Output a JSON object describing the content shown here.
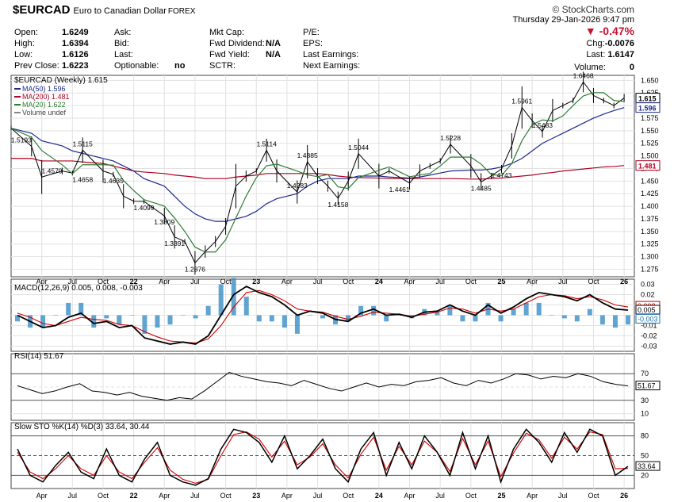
{
  "header": {
    "symbol": "$EURCAD",
    "description": "Euro to Canadian Dollar",
    "exchange": "FOREX",
    "logo": "© StockCharts.com",
    "datetime": "Thursday  29-Jan-2026  9:47 pm",
    "change_pct": "▼ -0.47%",
    "chg_label": "Chg:",
    "chg_value": "-0.0076",
    "last_label": "Last:",
    "last_value": "1.6147",
    "volume_label": "Volume:",
    "volume_value": "0"
  },
  "quote": {
    "col1": [
      {
        "label": "Open:",
        "value": "1.6249"
      },
      {
        "label": "High:",
        "value": "1.6394"
      },
      {
        "label": "Low:",
        "value": "1.6126"
      },
      {
        "label": "Prev Close:",
        "value": "1.6223"
      }
    ],
    "col2": [
      {
        "label": "Ask:",
        "value": ""
      },
      {
        "label": "Bid:",
        "value": ""
      },
      {
        "label": "Last:",
        "value": ""
      },
      {
        "label": "Optionable:",
        "value": "no"
      }
    ],
    "col3": [
      {
        "label": "Mkt Cap:",
        "value": ""
      },
      {
        "label": "Fwd Dividend:",
        "value": "N/A"
      },
      {
        "label": "Fwd Yield:",
        "value": "N/A"
      },
      {
        "label": "SCTR:",
        "value": ""
      }
    ],
    "col4": [
      {
        "label": "P/E:"
      },
      {
        "label": "EPS:"
      },
      {
        "label": "Last Earnings:"
      },
      {
        "label": "Next Earnings:"
      }
    ]
  },
  "chart_data": [
    {
      "type": "line",
      "title": "$EURCAD (Weekly) 1.615",
      "legend": [
        {
          "name": "MA(50) 1.596",
          "color": "#1c2a8c"
        },
        {
          "name": "MA(200) 1.481",
          "color": "#b00020"
        },
        {
          "name": "MA(20) 1.622",
          "color": "#2e7d32"
        },
        {
          "name": "Volume undef",
          "color": "#888888"
        }
      ],
      "x_ticks": [
        "Apr",
        "Jul",
        "Oct",
        "22",
        "Apr",
        "Jul",
        "Oct",
        "23",
        "Apr",
        "Jul",
        "Oct",
        "24",
        "Apr",
        "Jul",
        "Oct",
        "25",
        "Apr",
        "Jul",
        "Oct",
        "26"
      ],
      "x_start": "2021-01",
      "ylim": [
        1.26,
        1.66
      ],
      "y_ticks": [
        "1.650",
        "1.625",
        "1.600",
        "1.575",
        "1.550",
        "1.525",
        "1.500",
        "1.475",
        "1.450",
        "1.425",
        "1.400",
        "1.375",
        "1.350",
        "1.325",
        "1.300",
        "1.275"
      ],
      "price_months": [
        "2021-01",
        "2021-03",
        "2021-04",
        "2021-06",
        "2021-07",
        "2021-08",
        "2021-10",
        "2021-11",
        "2021-12",
        "2022-01",
        "2022-02",
        "2022-04",
        "2022-05",
        "2022-06",
        "2022-07",
        "2022-08",
        "2022-09",
        "2022-10",
        "2022-11",
        "2022-12",
        "2023-01",
        "2023-02",
        "2023-03",
        "2023-05",
        "2023-06",
        "2023-07",
        "2023-08",
        "2023-09",
        "2023-10",
        "2023-11",
        "2024-01",
        "2024-02",
        "2024-04",
        "2024-05",
        "2024-06",
        "2024-07",
        "2024-08",
        "2024-10",
        "2024-11",
        "2024-12",
        "2025-01",
        "2025-02",
        "2025-03",
        "2025-04",
        "2025-05",
        "2025-06",
        "2025-07",
        "2025-08",
        "2025-09",
        "2025-10",
        "2025-11",
        "2025-12",
        "2026-01"
      ],
      "price": [
        1.555,
        1.519,
        1.458,
        1.47,
        1.466,
        1.5115,
        1.47,
        1.4635,
        1.42,
        1.41,
        1.4099,
        1.3809,
        1.3391,
        1.33,
        1.2876,
        1.31,
        1.33,
        1.36,
        1.44,
        1.46,
        1.47,
        1.5114,
        1.47,
        1.4283,
        1.4885,
        1.46,
        1.44,
        1.4158,
        1.45,
        1.5044,
        1.46,
        1.47,
        1.4461,
        1.47,
        1.48,
        1.49,
        1.5228,
        1.48,
        1.4485,
        1.46,
        1.4743,
        1.52,
        1.5961,
        1.57,
        1.5483,
        1.59,
        1.6,
        1.61,
        1.6468,
        1.62,
        1.61,
        1.6,
        1.615
      ],
      "ma200": [
        1.495,
        1.495,
        1.49,
        1.49,
        1.49,
        1.488,
        1.485,
        1.48,
        1.475,
        1.47,
        1.468,
        1.465,
        1.462,
        1.46,
        1.458,
        1.455,
        1.455,
        1.455,
        1.458,
        1.46,
        1.462,
        1.465,
        1.465,
        1.465,
        1.465,
        1.465,
        1.463,
        1.46,
        1.458,
        1.457,
        1.456,
        1.455,
        1.455,
        1.455,
        1.455,
        1.455,
        1.455,
        1.454,
        1.454,
        1.455,
        1.456,
        1.458,
        1.46,
        1.462,
        1.465,
        1.467,
        1.47,
        1.472,
        1.474,
        1.476,
        1.478,
        1.479,
        1.481
      ],
      "ma50": [
        1.555,
        1.545,
        1.53,
        1.52,
        1.51,
        1.505,
        1.495,
        1.49,
        1.48,
        1.47,
        1.455,
        1.44,
        1.42,
        1.4,
        1.385,
        1.375,
        1.37,
        1.37,
        1.375,
        1.38,
        1.39,
        1.405,
        1.415,
        1.425,
        1.44,
        1.45,
        1.455,
        1.455,
        1.455,
        1.46,
        1.46,
        1.458,
        1.456,
        1.458,
        1.462,
        1.466,
        1.47,
        1.472,
        1.472,
        1.474,
        1.478,
        1.485,
        1.495,
        1.51,
        1.525,
        1.535,
        1.545,
        1.555,
        1.565,
        1.575,
        1.583,
        1.59,
        1.596
      ],
      "annotations": [
        {
          "x": "2021-02",
          "y": 1.5193,
          "label": "1.5193"
        },
        {
          "x": "2021-05",
          "y": 1.4579,
          "label": "1.4579"
        },
        {
          "x": "2021-08",
          "y": 1.5115,
          "label": "1.5115"
        },
        {
          "x": "2021-08",
          "y": 1.4658,
          "label": "1.4658"
        },
        {
          "x": "2021-11",
          "y": 1.4635,
          "label": "1.4635"
        },
        {
          "x": "2022-02",
          "y": 1.4099,
          "label": "1.4099"
        },
        {
          "x": "2022-04",
          "y": 1.3809,
          "label": "1.3809"
        },
        {
          "x": "2022-05",
          "y": 1.3391,
          "label": "1.3391"
        },
        {
          "x": "2022-07",
          "y": 1.2876,
          "label": "1.2876"
        },
        {
          "x": "2023-02",
          "y": 1.5114,
          "label": "1.5114"
        },
        {
          "x": "2023-05",
          "y": 1.4283,
          "label": "1.4283"
        },
        {
          "x": "2023-06",
          "y": 1.4885,
          "label": "1.4885"
        },
        {
          "x": "2023-09",
          "y": 1.4158,
          "label": "1.4158"
        },
        {
          "x": "2023-11",
          "y": 1.5044,
          "label": "1.5044"
        },
        {
          "x": "2024-03",
          "y": 1.4461,
          "label": "1.4461"
        },
        {
          "x": "2024-08",
          "y": 1.5228,
          "label": "1.5228"
        },
        {
          "x": "2024-11",
          "y": 1.4485,
          "label": "1.4485"
        },
        {
          "x": "2025-01",
          "y": 1.4743,
          "label": "1.4743"
        },
        {
          "x": "2025-03",
          "y": 1.5961,
          "label": "1.5961"
        },
        {
          "x": "2025-05",
          "y": 1.5483,
          "label": "1.5483"
        },
        {
          "x": "2025-09",
          "y": 1.6468,
          "label": "1.6468"
        }
      ],
      "right_labels": [
        {
          "y": 1.615,
          "label": "1.615",
          "color": "#000000"
        },
        {
          "y": 1.596,
          "label": "1.596",
          "color": "#1c2a8c"
        },
        {
          "y": 1.481,
          "label": "1.481",
          "color": "#b00020"
        }
      ]
    },
    {
      "type": "line",
      "title": "MACD(12,26,9) 0.005, 0.008, -0.003",
      "ylim": [
        -0.035,
        0.035
      ],
      "y_ticks": [
        "0.03",
        "0.02",
        "0.01",
        "0.00",
        "-0.01",
        "-0.02",
        "-0.03"
      ],
      "macd": [
        0.0,
        -0.006,
        -0.012,
        -0.01,
        -0.002,
        0.002,
        -0.008,
        -0.006,
        -0.012,
        -0.01,
        -0.022,
        -0.025,
        -0.028,
        -0.026,
        -0.028,
        -0.02,
        0.0,
        0.02,
        0.028,
        0.022,
        0.018,
        0.01,
        0.0,
        0.004,
        0.002,
        -0.004,
        -0.006,
        0.002,
        0.006,
        0.0,
        0.001,
        -0.002,
        0.003,
        0.004,
        0.01,
        0.004,
        0.0,
        0.01,
        0.002,
        0.008,
        0.016,
        0.022,
        0.02,
        0.018,
        0.014,
        0.02,
        0.012,
        0.006,
        0.005
      ],
      "signal": [
        0.002,
        -0.002,
        -0.008,
        -0.01,
        -0.006,
        -0.002,
        -0.004,
        -0.005,
        -0.009,
        -0.01,
        -0.016,
        -0.021,
        -0.025,
        -0.026,
        -0.027,
        -0.023,
        -0.01,
        0.008,
        0.022,
        0.024,
        0.02,
        0.014,
        0.006,
        0.004,
        0.003,
        -0.001,
        -0.004,
        -0.001,
        0.003,
        0.002,
        0.001,
        -0.001,
        0.001,
        0.003,
        0.007,
        0.006,
        0.002,
        0.006,
        0.004,
        0.006,
        0.012,
        0.018,
        0.02,
        0.019,
        0.016,
        0.018,
        0.015,
        0.01,
        0.008
      ],
      "right_labels": [
        {
          "y": 0.008,
          "label": "0.008",
          "color": "#c00000"
        },
        {
          "y": 0.005,
          "label": "0.005",
          "color": "#000000"
        },
        {
          "y": -0.003,
          "label": "-0.003",
          "color": "#1e6fb0"
        }
      ]
    },
    {
      "type": "line",
      "title": "RSI(14) 51.67",
      "ylim": [
        0,
        100
      ],
      "y_ticks": [
        "70",
        "50",
        "30",
        "10"
      ],
      "values": [
        52,
        46,
        40,
        44,
        50,
        55,
        44,
        42,
        38,
        42,
        36,
        33,
        30,
        34,
        32,
        44,
        58,
        72,
        66,
        62,
        58,
        56,
        52,
        60,
        54,
        48,
        44,
        50,
        56,
        50,
        54,
        52,
        58,
        60,
        64,
        56,
        52,
        60,
        56,
        62,
        70,
        68,
        62,
        66,
        64,
        70,
        66,
        58,
        54,
        51.67
      ],
      "right_labels": [
        {
          "y": 51.67,
          "label": "51.67",
          "color": "#000000"
        }
      ]
    },
    {
      "type": "line",
      "title": "Slow STO %K(14) %D(3) 33.64, 30.44",
      "ylim": [
        0,
        100
      ],
      "y_ticks": [
        "80",
        "50",
        "20"
      ],
      "k": [
        60,
        20,
        10,
        35,
        55,
        25,
        15,
        60,
        20,
        10,
        45,
        70,
        20,
        10,
        5,
        15,
        60,
        90,
        85,
        70,
        40,
        80,
        30,
        50,
        75,
        30,
        10,
        60,
        85,
        20,
        70,
        30,
        80,
        55,
        20,
        85,
        30,
        80,
        10,
        60,
        90,
        70,
        40,
        85,
        55,
        90,
        80,
        20,
        33.64
      ],
      "d": [
        55,
        25,
        15,
        30,
        50,
        30,
        20,
        50,
        25,
        15,
        40,
        62,
        28,
        14,
        8,
        14,
        50,
        82,
        86,
        75,
        48,
        72,
        36,
        48,
        68,
        36,
        16,
        52,
        78,
        28,
        64,
        36,
        72,
        55,
        26,
        76,
        36,
        72,
        18,
        54,
        84,
        74,
        46,
        78,
        60,
        86,
        82,
        30,
        30.44
      ],
      "right_labels": [
        {
          "y": 33.64,
          "label": "33.64",
          "color": "#000000"
        }
      ]
    }
  ]
}
